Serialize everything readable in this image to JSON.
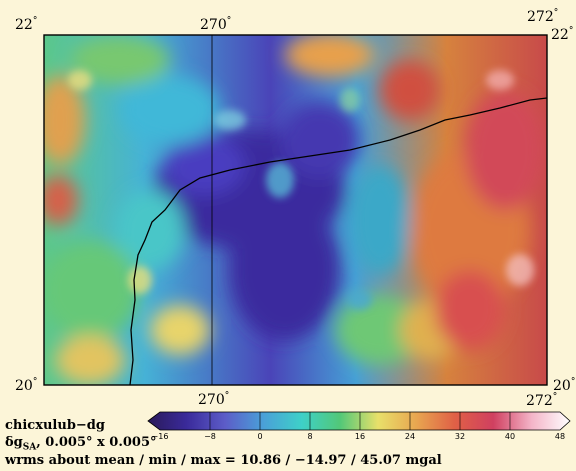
{
  "map": {
    "top_labels": {
      "left": "22",
      "center": "270",
      "right": "272"
    },
    "right_top_label": "22",
    "bottom_labels": {
      "left": "20",
      "center": "270",
      "right": "272"
    },
    "right_bottom_label": "20",
    "degree_symbol": "°",
    "lat_range": [
      20,
      22
    ],
    "lon_range": [
      268.2,
      272
    ]
  },
  "caption": {
    "name": "chicxulub−dg",
    "quantity_symbol": "δg",
    "quantity_subscript": "SA",
    "resolution": ", 0.005° x 0.005°",
    "stats": "wrms about mean / min / max = 10.86 / −14.97 / 45.07 mgal"
  },
  "colorbar": {
    "ticks": [
      "−16",
      "−8",
      "0",
      "8",
      "16",
      "24",
      "32",
      "40",
      "48"
    ],
    "range": [
      -16,
      48
    ],
    "colors": [
      "#2a1a5a",
      "#3a2a9a",
      "#5c5cc8",
      "#4aa0d8",
      "#3ed0c8",
      "#52c878",
      "#e8e06a",
      "#e8a650",
      "#e06046",
      "#d04060",
      "#f4b4c8",
      "#ffffff"
    ]
  },
  "colors": {
    "background": "#fcf5d8",
    "coastline": "#000000",
    "frame": "#000000"
  }
}
